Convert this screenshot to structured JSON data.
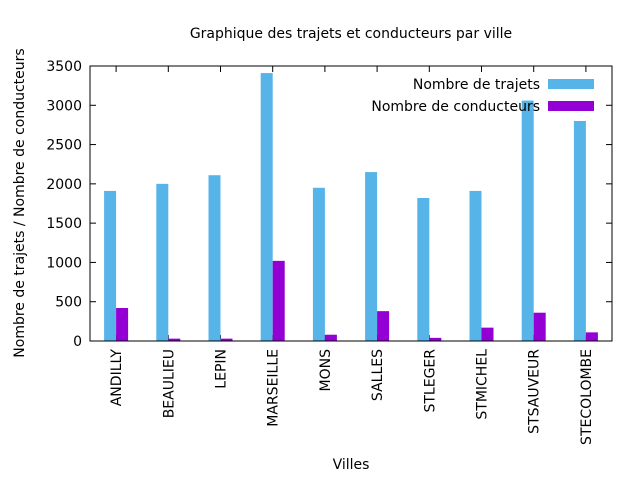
{
  "chart_data": {
    "type": "bar",
    "title": "Graphique des trajets et conducteurs par ville",
    "xlabel": "Villes",
    "ylabel": "Nombre de trajets / Nombre de conducteurs",
    "ylim": [
      0,
      3500
    ],
    "yticks": [
      0,
      500,
      1000,
      1500,
      2000,
      2500,
      3000,
      3500
    ],
    "grid": false,
    "legend_position": "top-right",
    "categories": [
      "ANDILLY",
      "BEAULIEU",
      "LEPIN",
      "MARSEILLE",
      "MONS",
      "SALLES",
      "STLEGER",
      "STMICHEL",
      "STSAUVEUR",
      "STECOLOMBE"
    ],
    "series": [
      {
        "name": "Nombre de trajets",
        "color": "#56b4e9",
        "values": [
          1910,
          2000,
          2110,
          3410,
          1950,
          2150,
          1820,
          1910,
          3060,
          2800
        ]
      },
      {
        "name": "Nombre de conducteurs",
        "color": "#9400d3",
        "values": [
          420,
          30,
          30,
          1020,
          80,
          380,
          40,
          170,
          360,
          110
        ]
      }
    ]
  }
}
